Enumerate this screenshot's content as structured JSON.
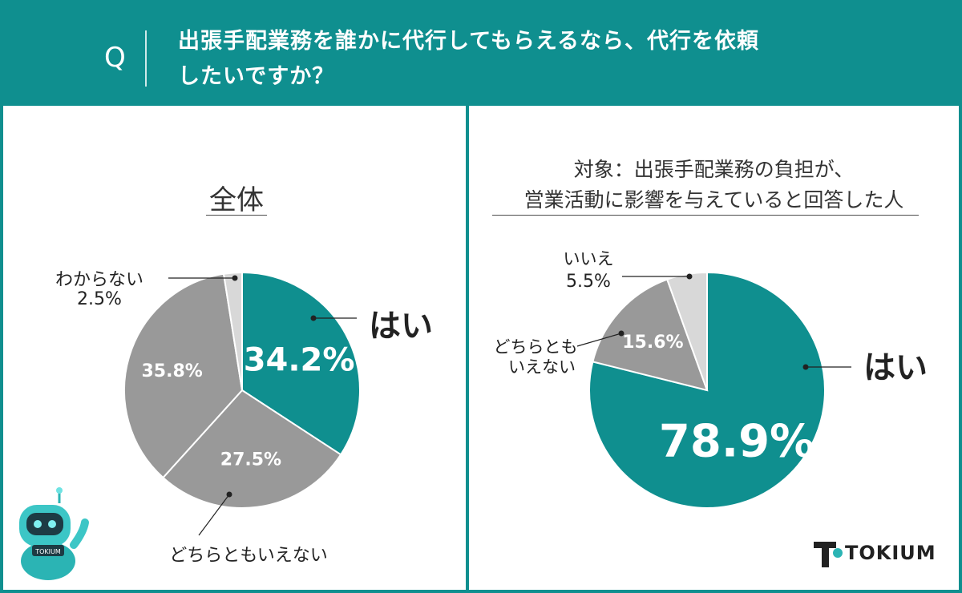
{
  "header": {
    "q_label": "Q",
    "question_line1": "出張手配業務を誰かに代行してもらえるなら、代行を依頼",
    "question_line2": "したいですか？"
  },
  "colors": {
    "teal": "#0f8f8f",
    "gray": "#999999",
    "lightgray": "#d8d8d8",
    "header_bg": "#0f8f8f"
  },
  "left_panel": {
    "title": "全体",
    "labels": {
      "yes": "はい",
      "neither": "どちらともいえない",
      "dont_know_name": "わからない",
      "dont_know_pct": "2.5%"
    },
    "values_text": {
      "yes": "34.2%",
      "neither_a": "27.5%",
      "neither_b": "35.8%"
    }
  },
  "right_panel": {
    "title_line1": "対象：出張手配業務の負担が、",
    "title_line2": "営業活動に影響を与えていると回答した人",
    "labels": {
      "yes": "はい",
      "neither_line1": "どちらとも",
      "neither_line2": "いえない",
      "no_name": "いいえ",
      "no_pct": "5.5%"
    },
    "values_text": {
      "yes": "78.9%",
      "neither": "15.6%"
    }
  },
  "logo": {
    "text": "TOKIUM"
  },
  "chart_data": [
    {
      "type": "pie",
      "title": "全体",
      "categories": [
        "はい",
        "",
        "",
        "わからない"
      ],
      "values": [
        34.2,
        27.5,
        35.8,
        2.5
      ],
      "colors": [
        "#0f8f8f",
        "#999999",
        "#999999",
        "#d8d8d8"
      ]
    },
    {
      "type": "pie",
      "title": "対象：出張手配業務の負担が、営業活動に影響を与えていると回答した人",
      "categories": [
        "はい",
        "どちらともいえない",
        "いいえ"
      ],
      "values": [
        78.9,
        15.6,
        5.5
      ],
      "colors": [
        "#0f8f8f",
        "#999999",
        "#d8d8d8"
      ]
    }
  ]
}
